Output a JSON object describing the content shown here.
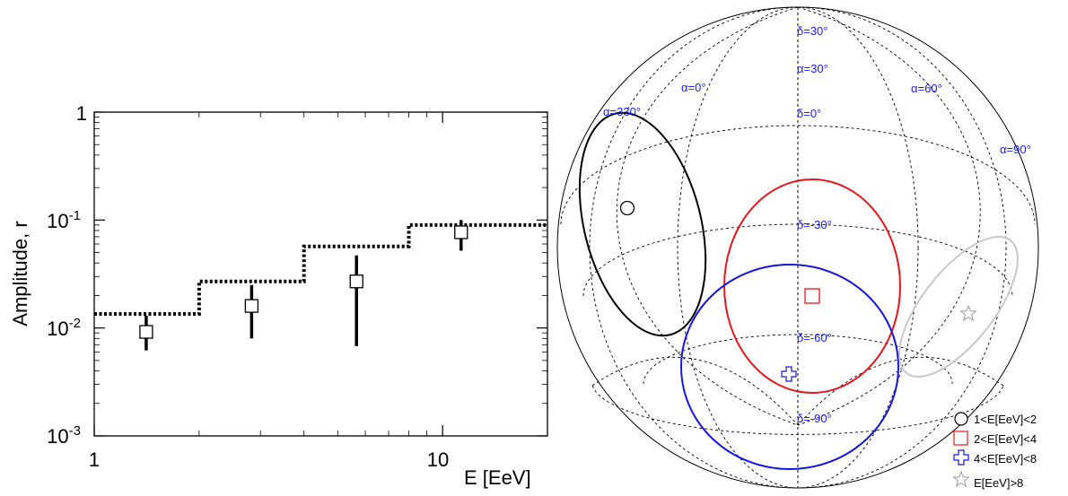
{
  "chart_data": [
    {
      "type": "scatter",
      "xlabel": "E [EeV]",
      "ylabel": "Amplitude, r",
      "xscale": "log",
      "yscale": "log",
      "xlim": [
        1,
        20
      ],
      "ylim": [
        0.001,
        1
      ],
      "x_tick_labels": [
        "1",
        "10"
      ],
      "y_tick_labels": [
        {
          "base": "1",
          "exp": ""
        },
        {
          "base": "10",
          "exp": "-1"
        },
        {
          "base": "10",
          "exp": "-2"
        },
        {
          "base": "10",
          "exp": "-3"
        }
      ],
      "grid": false,
      "series": [
        {
          "marker": "open-square",
          "points": [
            {
              "x": 1.41,
              "y": 0.0092,
              "ylo": 0.0062,
              "yhi": 0.013
            },
            {
              "x": 2.83,
              "y": 0.016,
              "ylo": 0.008,
              "yhi": 0.025
            },
            {
              "x": 5.66,
              "y": 0.027,
              "ylo": 0.0068,
              "yhi": 0.047
            },
            {
              "x": 11.3,
              "y": 0.077,
              "ylo": 0.052,
              "yhi": 0.1
            }
          ]
        },
        {
          "style": "dotted-step",
          "steps": [
            {
              "x0": 1,
              "x1": 2,
              "y": 0.0135
            },
            {
              "x0": 2,
              "x1": 4,
              "y": 0.027
            },
            {
              "x0": 4,
              "x1": 8,
              "y": 0.057
            },
            {
              "x0": 8,
              "x1": 20,
              "y": 0.09
            }
          ]
        }
      ]
    },
    {
      "type": "sky-map",
      "projection": "orthographic",
      "grid_labels": {
        "ra": [
          "α=0°",
          "α=30°",
          "α=60°",
          "α=90°",
          "α=330°"
        ],
        "dec": [
          "δ=30°",
          "δ=0°",
          "δ=-30°",
          "δ=-60°",
          "δ=-90°"
        ]
      },
      "colors": {
        "bin1": "#000000",
        "bin2": "#e8141c",
        "bin3": "#1414e6",
        "bin4": "#c8c8c8"
      },
      "legend": {
        "position": "bottom-right",
        "entries": [
          {
            "label": "1<E[EeV]<2",
            "marker": "circle"
          },
          {
            "label": "2<E[EeV]<4",
            "marker": "square"
          },
          {
            "label": "4<E[EeV]<8",
            "marker": "cross"
          },
          {
            "label": "E[EeV]>8",
            "marker": "star"
          }
        ]
      }
    }
  ]
}
